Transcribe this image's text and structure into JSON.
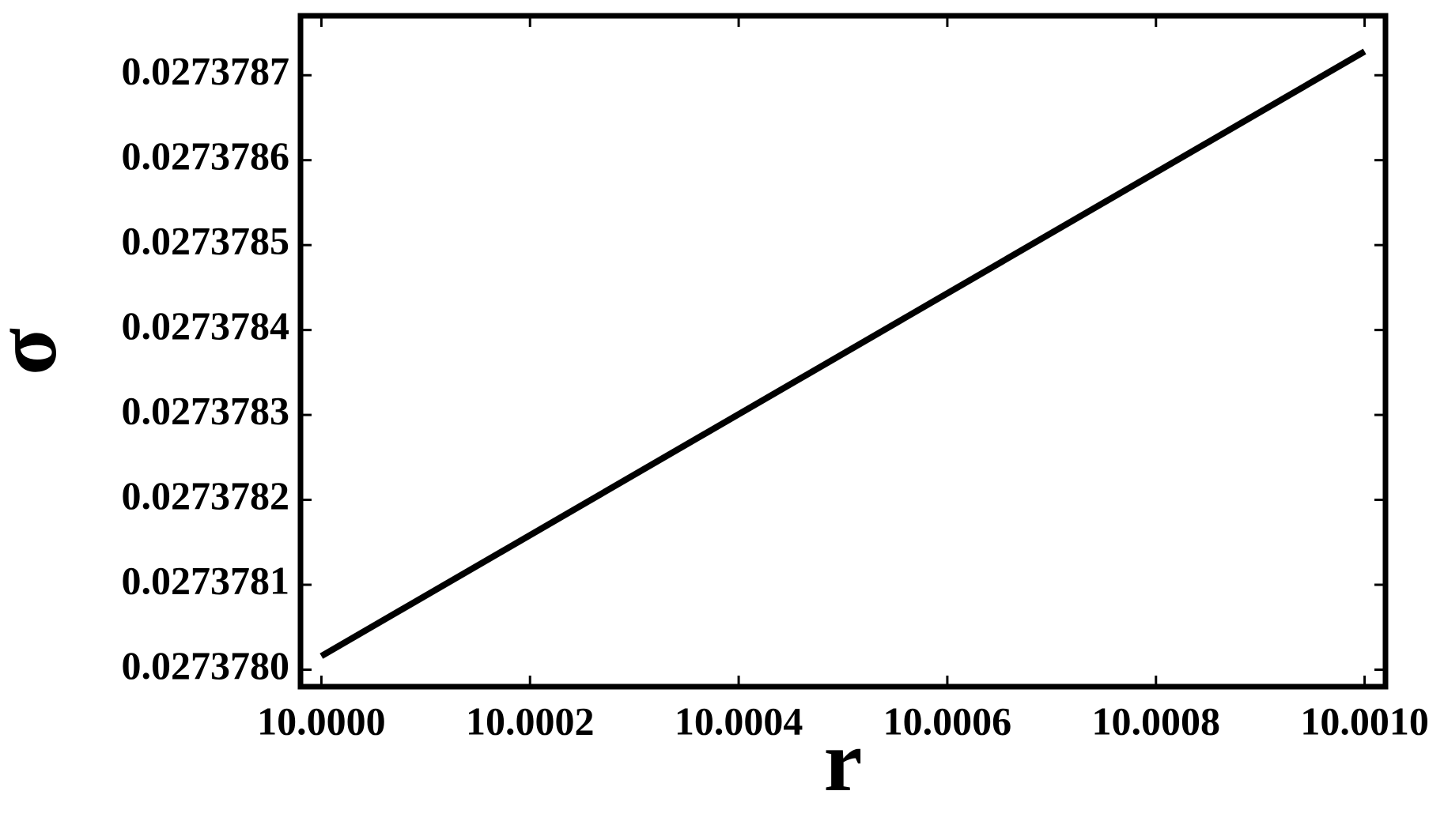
{
  "chart_data": {
    "type": "line",
    "xlabel": "r",
    "ylabel": "σ",
    "x": [
      10.0,
      10.001
    ],
    "series": [
      {
        "color": "#000000",
        "values": [
          0.027378016,
          0.027378728
        ]
      }
    ],
    "xlim": [
      9.99998,
      10.00102
    ],
    "ylim": [
      0.02737798,
      0.02737877
    ],
    "xticks": [
      {
        "value": 10.0,
        "label": "10.0000"
      },
      10.0002,
      10.0004,
      10.0006,
      10.0008,
      {
        "value": 10.001,
        "label": "10.0010"
      }
    ],
    "yticks": [
      {
        "value": 0.027378,
        "label": "0.0273780"
      },
      0.0273781,
      0.0273782,
      0.0273783,
      0.0273784,
      0.0273785,
      0.0273786,
      0.0273787
    ],
    "grid": false
  }
}
